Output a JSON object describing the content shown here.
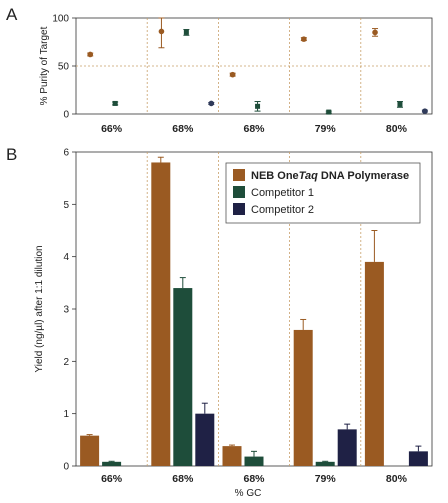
{
  "chart_data": [
    {
      "panel_label": "A",
      "type": "scatter",
      "title": "",
      "xlabel": "",
      "ylabel": "% Purity of Target",
      "categories": [
        "66%",
        "68%",
        "68%",
        "79%",
        "80%"
      ],
      "yticks": [
        0,
        50,
        100
      ],
      "ylim": [
        0,
        100
      ],
      "grid": "dotted reference lines at y=50 and between categories",
      "series": [
        {
          "color": "#9a5a22",
          "marker": "circle",
          "values": [
            62,
            86,
            41,
            78,
            85
          ],
          "errors": [
            1.5,
            17,
            1.5,
            1.5,
            4
          ]
        },
        {
          "color": "#1e4d3a",
          "marker": "square",
          "values": [
            11,
            85,
            8,
            2,
            10
          ],
          "errors": [
            1.5,
            3,
            5,
            1,
            3
          ]
        },
        {
          "color": "#2f3a5a",
          "marker": "circle",
          "values": [
            null,
            11,
            null,
            null,
            3
          ],
          "errors": [
            0,
            1,
            0,
            0,
            1
          ]
        }
      ]
    },
    {
      "panel_label": "B",
      "type": "bar",
      "title": "",
      "xlabel": "% GC",
      "ylabel": "Yield (ng/µl) after 1:1 dilution",
      "categories": [
        "66%",
        "68%",
        "68%",
        "79%",
        "80%"
      ],
      "yticks": [
        0,
        1,
        2,
        3,
        4,
        5,
        6
      ],
      "ylim": [
        0,
        6
      ],
      "legend_position": "top-right",
      "series": [
        {
          "name_pre": "NEB One",
          "name_em": "Taq",
          "name_post": " DNA Polymerase",
          "color": "#9a5a22",
          "values": [
            0.58,
            5.8,
            0.38,
            2.6,
            3.9
          ],
          "errors": [
            0.02,
            0.1,
            0.02,
            0.2,
            0.6
          ]
        },
        {
          "name": "Competitor 1",
          "color": "#1e4d3a",
          "values": [
            0.08,
            3.4,
            0.18,
            0.08,
            0
          ],
          "errors": [
            0.01,
            0.2,
            0.1,
            0.01,
            0
          ]
        },
        {
          "name": "Competitor 2",
          "color": "#1f2145",
          "values": [
            0,
            1.0,
            0,
            0.7,
            0.28
          ],
          "errors": [
            0,
            0.2,
            0,
            0.1,
            0.1
          ]
        }
      ]
    }
  ]
}
